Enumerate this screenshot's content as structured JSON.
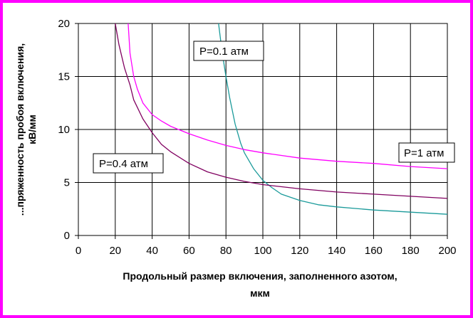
{
  "chart_data": {
    "type": "line",
    "title": "",
    "xlabel_line1": "Продольный размер включения, заполненного азотом,",
    "xlabel_line2": "мкм",
    "ylabel_line1": "...пряженность пробоя включения,",
    "ylabel_line2": "кВ/мм",
    "xlim": [
      0,
      200
    ],
    "ylim": [
      0,
      20
    ],
    "xticks": [
      0,
      20,
      40,
      60,
      80,
      100,
      120,
      140,
      160,
      180,
      200
    ],
    "yticks": [
      0,
      5,
      10,
      15,
      20
    ],
    "grid": true,
    "series": [
      {
        "name": "P=0.1 атм",
        "color": "#1a9a9a",
        "x": [
          76,
          78,
          80,
          82,
          85,
          88,
          90,
          95,
          100,
          105,
          110,
          120,
          130,
          140,
          150,
          160,
          170,
          180,
          190,
          200
        ],
        "y": [
          20,
          17.2,
          15.0,
          13.0,
          10.5,
          8.7,
          7.8,
          6.3,
          5.2,
          4.5,
          3.9,
          3.3,
          2.9,
          2.7,
          2.55,
          2.4,
          2.3,
          2.2,
          2.1,
          2.0
        ]
      },
      {
        "name": "P=0.4 атм",
        "color": "#800060",
        "x": [
          20,
          22,
          25,
          28,
          30,
          35,
          40,
          45,
          50,
          60,
          70,
          80,
          90,
          100,
          120,
          140,
          160,
          180,
          200
        ],
        "y": [
          20,
          18.0,
          15.8,
          14.2,
          12.8,
          11.0,
          9.7,
          8.6,
          7.9,
          6.8,
          6.0,
          5.5,
          5.1,
          4.8,
          4.4,
          4.1,
          3.9,
          3.7,
          3.5
        ]
      },
      {
        "name": "P=1 атм",
        "color": "#ff00ff",
        "x": [
          27,
          28,
          30,
          32,
          35,
          40,
          45,
          50,
          60,
          70,
          80,
          90,
          100,
          120,
          140,
          160,
          180,
          200
        ],
        "y": [
          20,
          17.2,
          15.0,
          13.8,
          12.5,
          11.4,
          10.8,
          10.3,
          9.6,
          9.0,
          8.5,
          8.1,
          7.8,
          7.3,
          7.0,
          6.8,
          6.5,
          6.3
        ]
      }
    ],
    "annotations": [
      "P=0.1 атм",
      "P=0.4 атм",
      "P=1 атм"
    ]
  }
}
